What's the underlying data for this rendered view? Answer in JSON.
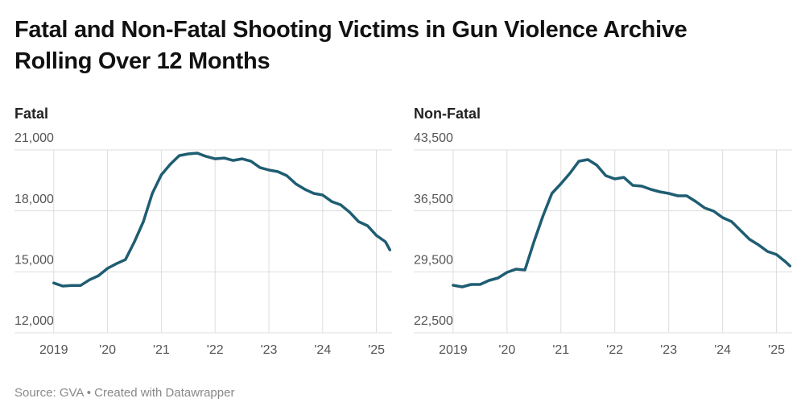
{
  "title": "Fatal and Non-Fatal Shooting Victims in Gun Violence Archive Rolling Over 12 Months",
  "source": "Source: GVA • Created with Datawrapper",
  "chart_data": [
    {
      "type": "line",
      "title": "Fatal",
      "color": "#1f5d72",
      "x": [
        2019,
        2019.167,
        2019.333,
        2019.5,
        2019.667,
        2019.833,
        2020,
        2020.167,
        2020.333,
        2020.5,
        2020.667,
        2020.833,
        2021,
        2021.167,
        2021.333,
        2021.5,
        2021.667,
        2021.833,
        2022,
        2022.167,
        2022.333,
        2022.5,
        2022.667,
        2022.833,
        2023,
        2023.167,
        2023.333,
        2023.5,
        2023.667,
        2023.833,
        2024,
        2024.167,
        2024.333,
        2024.5,
        2024.667,
        2024.833,
        2025,
        2025.167,
        2025.25
      ],
      "values": [
        14450,
        14300,
        14330,
        14330,
        14610,
        14810,
        15170,
        15400,
        15600,
        16480,
        17470,
        18860,
        19770,
        20290,
        20720,
        20800,
        20840,
        20680,
        20560,
        20600,
        20480,
        20560,
        20440,
        20130,
        20010,
        19930,
        19730,
        19330,
        19060,
        18860,
        18780,
        18460,
        18300,
        17940,
        17470,
        17270,
        16790,
        16480,
        16080
      ],
      "xlim": [
        2018.27,
        2025.29
      ],
      "ylim": [
        12000,
        21000
      ],
      "xticks": [
        2019,
        {
          "value": 2020,
          "label": "'20"
        },
        {
          "value": 2021,
          "label": "'21"
        },
        {
          "value": 2022,
          "label": "'22"
        },
        {
          "value": 2023,
          "label": "'23"
        },
        {
          "value": 2024,
          "label": "'24"
        },
        {
          "value": 2025,
          "label": "'25"
        }
      ],
      "yticks": [
        {
          "value": 12000,
          "label": "12,000"
        },
        {
          "value": 15000,
          "label": "15,000"
        },
        {
          "value": 18000,
          "label": "18,000"
        },
        {
          "value": 21000,
          "label": "21,000"
        }
      ],
      "grid": true
    },
    {
      "type": "line",
      "title": "Non-Fatal",
      "color": "#1f5d72",
      "x": [
        2019,
        2019.167,
        2019.333,
        2019.5,
        2019.667,
        2019.833,
        2020,
        2020.167,
        2020.333,
        2020.5,
        2020.667,
        2020.833,
        2021,
        2021.167,
        2021.333,
        2021.5,
        2021.667,
        2021.833,
        2022,
        2022.167,
        2022.333,
        2022.5,
        2022.667,
        2022.833,
        2023,
        2023.167,
        2023.333,
        2023.5,
        2023.667,
        2023.833,
        2024,
        2024.167,
        2024.333,
        2024.5,
        2024.667,
        2024.833,
        2025,
        2025.167,
        2025.25
      ],
      "values": [
        27960,
        27770,
        28050,
        28050,
        28510,
        28790,
        29440,
        29810,
        29720,
        32950,
        35910,
        38500,
        39610,
        40820,
        42200,
        42390,
        41740,
        40540,
        40170,
        40350,
        39430,
        39340,
        38970,
        38690,
        38500,
        38230,
        38230,
        37580,
        36840,
        36470,
        35730,
        35270,
        34250,
        33230,
        32590,
        31840,
        31480,
        30650,
        30180
      ],
      "xlim": [
        2018.27,
        2025.29
      ],
      "ylim": [
        22500,
        43500
      ],
      "xticks": [
        2019,
        {
          "value": 2020,
          "label": "'20"
        },
        {
          "value": 2021,
          "label": "'21"
        },
        {
          "value": 2022,
          "label": "'22"
        },
        {
          "value": 2023,
          "label": "'23"
        },
        {
          "value": 2024,
          "label": "'24"
        },
        {
          "value": 2025,
          "label": "'25"
        }
      ],
      "yticks": [
        {
          "value": 22500,
          "label": "22,500"
        },
        {
          "value": 29500,
          "label": "29,500"
        },
        {
          "value": 36500,
          "label": "36,500"
        },
        {
          "value": 43500,
          "label": "43,500"
        }
      ],
      "grid": true
    }
  ]
}
